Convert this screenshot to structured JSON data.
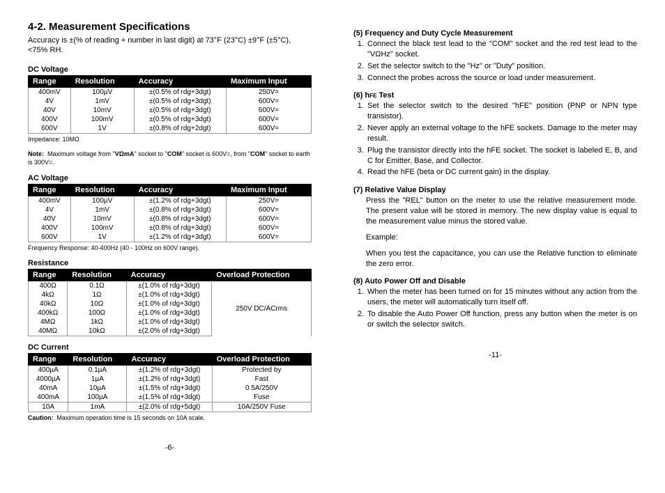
{
  "left": {
    "title": "4-2.  Measurement Specifications",
    "intro": "Accuracy is  ±(% of reading + number in last digit) at 73°F (23°C) ±9°F (±5°C), <75% RH.",
    "dcv": {
      "label": "DC Voltage",
      "hdr": [
        "Range",
        "Resolution",
        "Accuracy",
        "Maximum Input"
      ],
      "rows": [
        [
          "400mV",
          "100µV",
          "±(0.5% of rdg+3dgt)",
          "250V="
        ],
        [
          "4V",
          "1mV",
          "±(0.5% of rdg+3dgt)",
          "600V="
        ],
        [
          "40V",
          "10mV",
          "±(0.5% of rdg+3dgt)",
          "600V="
        ],
        [
          "400V",
          "100mV",
          "±(0.5% of rdg+3dgt)",
          "600V="
        ],
        [
          "600V",
          "1V",
          "±(0.8% of rdg+2dgt)",
          "600V="
        ]
      ],
      "cap1": "Impedance:  10MΩ",
      "cap2": "Note:  Maximum voltage from \"VΩmA\" socket to \"COM\" socket is 600V=, from \"COM\" socket to earth is 300V=."
    },
    "acv": {
      "label": "AC Voltage",
      "hdr": [
        "Range",
        "Resolution",
        "Accuracy",
        "Maximum Input"
      ],
      "rows": [
        [
          "400mV",
          "100µV",
          "±(1.2% of rdg+3dgt)",
          "250V="
        ],
        [
          "4V",
          "1mV",
          "±(0.8% of rdg+3dgt)",
          "600V="
        ],
        [
          "40V",
          "10mV",
          "±(0.8% of rdg+3dgt)",
          "600V="
        ],
        [
          "400V",
          "100mV",
          "±(0.8% of rdg+3dgt)",
          "600V="
        ],
        [
          "600V",
          "1V",
          "±(1.2% of rdg+3dgt)",
          "600V="
        ]
      ],
      "cap": "Frequency Response:  40-400Hz (40 - 100Hz on 600V range)."
    },
    "res": {
      "label": "Resistance",
      "hdr": [
        "Range",
        "Resolution",
        "Accuracy",
        "Overload Protection"
      ],
      "rows": [
        [
          "400Ω",
          "0.1Ω",
          "±(1.0% of rdg+3dgt)"
        ],
        [
          "4kΩ",
          "1Ω",
          "±(1.0% of rdg+3dgt)"
        ],
        [
          "40kΩ",
          "10Ω",
          "±(1.0% of rdg+3dgt)"
        ],
        [
          "400kΩ",
          "100Ω",
          "±(1.0% of rdg+3dgt)"
        ],
        [
          "4MΩ",
          "1kΩ",
          "±(1.0% of rdg+3dgt)"
        ],
        [
          "40MΩ",
          "10kΩ",
          "±(2.0% of rdg+3dgt)"
        ]
      ],
      "overload": "250V DC/ACrms"
    },
    "dcc": {
      "label": "DC Current",
      "hdr": [
        "Range",
        "Resolution",
        "Accuracy",
        "Overload Protection"
      ],
      "rows": [
        [
          "400µA",
          "0.1µA",
          "±(1.2% of rdg+3dgt)",
          "Protected by"
        ],
        [
          "4000µA",
          "1µA",
          "±(1.2% of rdg+3dgt)",
          "Fast"
        ],
        [
          "40mA",
          "10µA",
          "±(1.5% of rdg+3dgt)",
          "0.5A/250V"
        ],
        [
          "400mA",
          "100µA",
          "±(1.5% of rdg+3dgt)",
          "Fuse"
        ]
      ],
      "row10a": [
        "10A",
        "1mA",
        "±(2.0% of rdg+5dgt)",
        "10A/250V Fuse"
      ],
      "cap": "Caution:  Maximum operation time is 15 seconds on 10A scale."
    },
    "pagenum": "-6-"
  },
  "right": {
    "s5": {
      "title": "(5) Frequency and Duty Cycle Measurement",
      "items": [
        "Connect the black test lead to the \"COM\" socket and the red test lead to the \"VΩHz\" socket.",
        "Set the selector switch to the \"Hz\" or \"Duty\" position.",
        "Connect the probes across the source or load under measurement."
      ]
    },
    "s6": {
      "title": "(6) hFE Test",
      "items": [
        "Set the selector switch to the desired \"hFE\" position (PNP or NPN type transistor).",
        "Never apply an external voltage to the hFE sockets.  Damage to the meter may result.",
        "Plug the transistor directly into the hFE socket.  The socket is labeled E, B, and C for Emitter, Base, and Collector.",
        "Read the hFE (beta or DC current gain) in the display."
      ]
    },
    "s7": {
      "title": "(7) Relative Value Display",
      "p1": "Press the \"REL\" button on the meter to use the relative measurement mode. The present value will be stored in memory. The new display value is equal to the measurement value minus the stored value.",
      "p2": "Example:",
      "p3": "When you test the capacitance, you can use the Relative function to eliminate the zero error."
    },
    "s8": {
      "title": "(8) Auto Power Off and Disable",
      "items": [
        "When the meter has been turned on for 15 minutes without any action from the users, the meter will automatically turn itself off.",
        "To disable the Auto Power Off function, press any button when the meter is on or switch the selector switch."
      ]
    },
    "pagenum": "-11-"
  }
}
